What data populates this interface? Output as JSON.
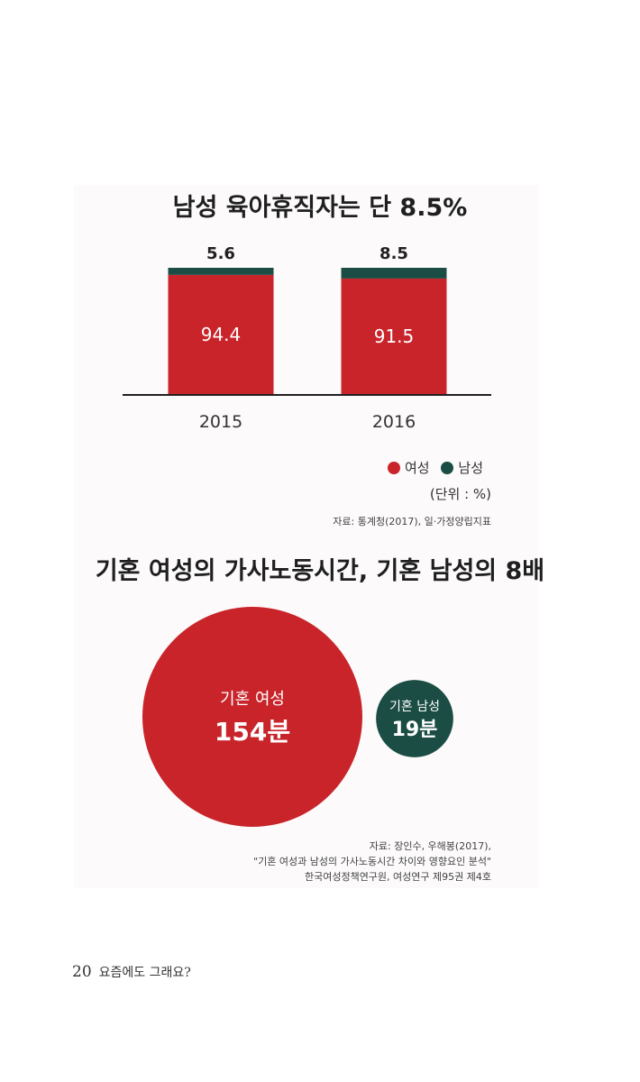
{
  "chart_data": [
    {
      "type": "bar",
      "title": "남성 육아휴직자는 단 8.5%",
      "categories": [
        "2015",
        "2016"
      ],
      "series": [
        {
          "name": "여성",
          "values": [
            94.4,
            91.5
          ],
          "color": "#c8242a"
        },
        {
          "name": "남성",
          "values": [
            5.6,
            8.5
          ],
          "color": "#1b4d45"
        }
      ],
      "stacked": true,
      "ylim": [
        0,
        100
      ],
      "legend_position": "bottom-right",
      "unit_note": "(단위 : %)",
      "source": "자료: 통계청(2017), 일·가정양립지표"
    },
    {
      "type": "bubble",
      "title": "기혼 여성의 가사노동시간, 기혼 남성의 8배",
      "items": [
        {
          "label": "기혼 여성",
          "value": 154,
          "value_text": "154분",
          "color": "#c8242a"
        },
        {
          "label": "기혼 남성",
          "value": 19,
          "value_text": "19분",
          "color": "#1b4d45"
        }
      ],
      "source_lines": [
        "자료: 장인수, 우해봉(2017),",
        "\"기혼 여성과 남성의 가사노동시간 차이와 영향요인 분석\"",
        "한국여성정책연구원, 여성연구 제95권 제4호"
      ]
    }
  ],
  "footer": {
    "page": "20",
    "text": "요즘에도 그래요?"
  }
}
